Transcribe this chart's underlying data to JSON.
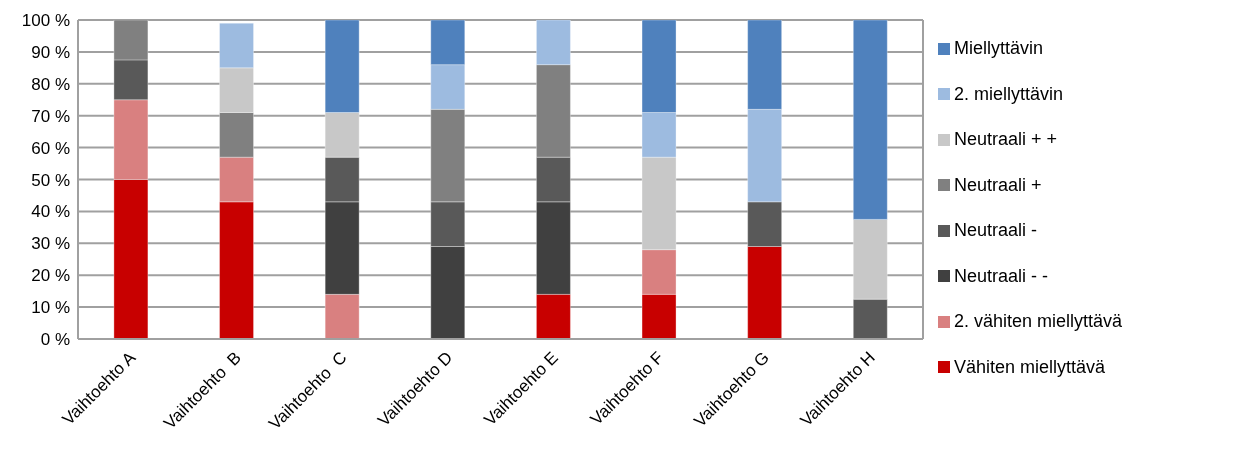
{
  "chart_data": {
    "type": "bar",
    "stacked": true,
    "categories": [
      "Vaihtoehto A",
      "Vaihtoehto  B",
      "Vaihtoehto  C",
      "Vaihtoehto D",
      "Vaihtoehto E",
      "Vaihtoehto F",
      "Vaihtoehto G",
      "Vaihtoehto H"
    ],
    "series": [
      {
        "name": "Vähiten miellyttävä",
        "color": "#c80000",
        "values": [
          50,
          43,
          0,
          0,
          14,
          14,
          29,
          0
        ]
      },
      {
        "name": "2. vähiten miellyttävä",
        "color": "#d98080",
        "values": [
          25,
          14,
          14,
          0,
          0,
          14,
          0,
          0
        ]
      },
      {
        "name": "Neutraali - -",
        "color": "#404040",
        "values": [
          0,
          0,
          29,
          29,
          29,
          0,
          0,
          0
        ]
      },
      {
        "name": "Neutraali -",
        "color": "#595959",
        "values": [
          12.5,
          0,
          14,
          14,
          14,
          0,
          14,
          12.5
        ]
      },
      {
        "name": "Neutraali +",
        "color": "#808080",
        "values": [
          12.5,
          14,
          0,
          29,
          29,
          0,
          0,
          0
        ]
      },
      {
        "name": "Neutraali + +",
        "color": "#c8c8c8",
        "values": [
          0,
          14,
          14,
          0,
          0,
          29,
          0,
          25
        ]
      },
      {
        "name": "2. miellyttävin",
        "color": "#9dbbe0",
        "values": [
          0,
          14,
          0,
          14,
          14,
          14,
          29,
          0
        ]
      },
      {
        "name": "Miellyttävin",
        "color": "#4f81bd",
        "values": [
          0,
          0,
          29,
          14,
          0,
          29,
          28,
          62.5
        ]
      }
    ],
    "ylim": [
      0,
      100
    ],
    "yticks": [
      {
        "value": 0,
        "label": "0 %"
      },
      {
        "value": 10,
        "label": "10 %"
      },
      {
        "value": 20,
        "label": "20 %"
      },
      {
        "value": 30,
        "label": "30 %"
      },
      {
        "value": 40,
        "label": "40 %"
      },
      {
        "value": 50,
        "label": "50 %"
      },
      {
        "value": 60,
        "label": "60 %"
      },
      {
        "value": 70,
        "label": "70 %"
      },
      {
        "value": 80,
        "label": "80 %"
      },
      {
        "value": 90,
        "label": "90 %"
      },
      {
        "value": 100,
        "label": "100 %"
      }
    ],
    "grid": "y",
    "legend": "right"
  }
}
